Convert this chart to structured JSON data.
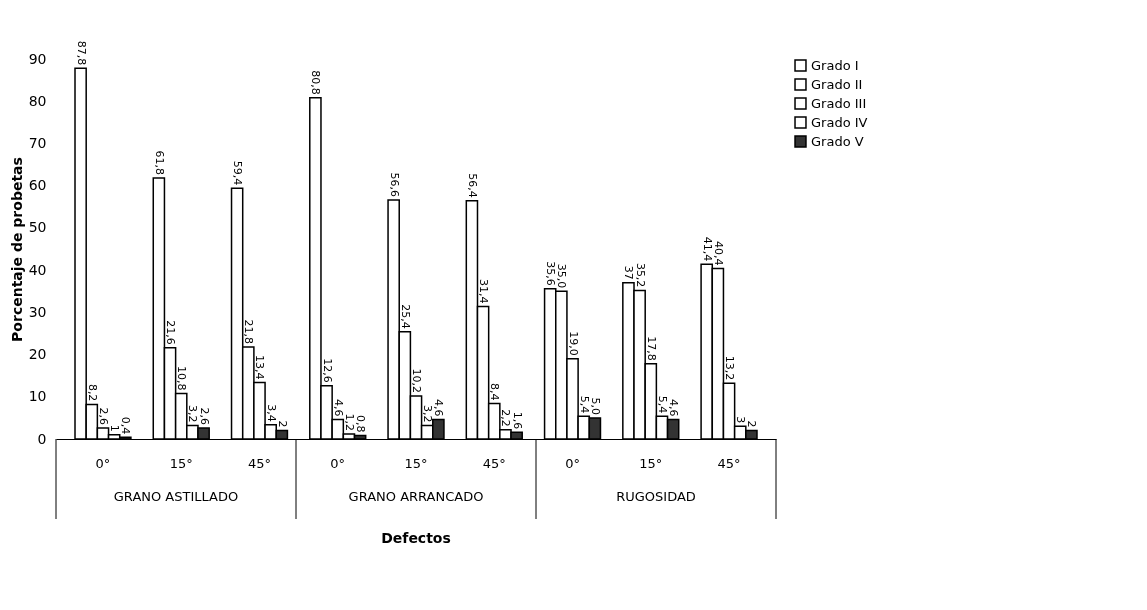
{
  "chart_data": {
    "type": "bar",
    "xlabel": "Defectos",
    "ylabel": "Porcentaje de probetas",
    "categories": [
      "0°",
      "15°",
      "45°",
      "0°",
      "15°",
      "45°",
      "0°",
      "15°",
      "45°"
    ],
    "annotations": [
      "GRANO ASTILLADO",
      "GRANO ARRANCADO",
      "RUGOSIDAD"
    ],
    "ylim": [
      0,
      90
    ],
    "yticks": [
      0,
      10,
      20,
      30,
      40,
      50,
      60,
      70,
      80,
      90
    ],
    "grid": false,
    "legend": "right",
    "data_labels": true,
    "series": [
      {
        "name": "Grado I",
        "color": "#ffffff",
        "values": [
          87.8,
          61.8,
          59.4,
          80.8,
          56.6,
          56.4,
          35.6,
          37,
          41.4
        ],
        "value_labels": [
          "87,8",
          "61,8",
          "59,4",
          "80,8",
          "56,6",
          "56,4",
          "35,6",
          "37",
          "41,4"
        ]
      },
      {
        "name": "Grado II",
        "color": "#ffffff",
        "values": [
          8.2,
          21.6,
          21.8,
          12.6,
          25.4,
          31.4,
          35.0,
          35.2,
          40.4
        ],
        "value_labels": [
          "8,2",
          "21,6",
          "21,8",
          "12,6",
          "25,4",
          "31,4",
          "35,0",
          "35,2",
          "40,4"
        ]
      },
      {
        "name": "Grado III",
        "color": "#ffffff",
        "values": [
          2.6,
          10.8,
          13.4,
          4.6,
          10.2,
          8.4,
          19.0,
          17.8,
          13.2
        ],
        "value_labels": [
          "2,6",
          "10,8",
          "13,4",
          "4,6",
          "10,2",
          "8,4",
          "19,0",
          "17,8",
          "13,2"
        ]
      },
      {
        "name": "Grado IV",
        "color": "#ffffff",
        "values": [
          1,
          3.2,
          3.4,
          1.2,
          3.2,
          2.2,
          5.4,
          5.4,
          3
        ],
        "value_labels": [
          "1",
          "3,2",
          "3,4",
          "1,2",
          "3,2",
          "2,2",
          "5,4",
          "5,4",
          "3"
        ]
      },
      {
        "name": "Grado V",
        "color": "#333333",
        "values": [
          0.4,
          2.6,
          2,
          0.8,
          4.6,
          1.6,
          5.0,
          4.6,
          2
        ],
        "value_labels": [
          "0,4",
          "2,6",
          "2",
          "0,8",
          "4,6",
          "1,6",
          "5,0",
          "4,6",
          "2"
        ]
      }
    ]
  }
}
